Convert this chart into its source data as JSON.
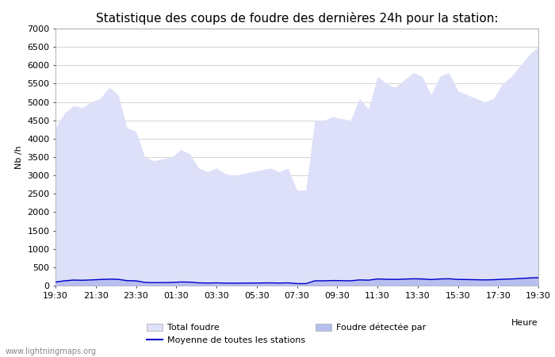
{
  "title": "Statistique des coups de foudre des dernières 24h pour la station:",
  "ylabel": "Nb /h",
  "xlabel": "Heure",
  "watermark": "www.lightningmaps.org",
  "ylim": [
    0,
    7000
  ],
  "yticks": [
    0,
    500,
    1000,
    1500,
    2000,
    2500,
    3000,
    3500,
    4000,
    4500,
    5000,
    5500,
    6000,
    6500,
    7000
  ],
  "xtick_labels": [
    "19:30",
    "21:30",
    "23:30",
    "01:30",
    "03:30",
    "05:30",
    "07:30",
    "09:30",
    "11:30",
    "13:30",
    "15:30",
    "17:30",
    "19:30"
  ],
  "fill_color_light": "#dde0f8",
  "fill_color_dark": "#b8bfee",
  "line_color": "#0000cc",
  "background_color": "#ffffff",
  "grid_color": "#cccccc",
  "title_fontsize": 11,
  "axis_fontsize": 8,
  "tick_fontsize": 8,
  "legend_fontsize": 8,
  "total_foudre_values": [
    4300,
    4700,
    4900,
    4850,
    5000,
    5100,
    5400,
    5200,
    4300,
    4200,
    3500,
    3400,
    3450,
    3500,
    3700,
    3600,
    3200,
    3100,
    3200,
    3050,
    3000,
    3050,
    3100,
    3150,
    3200,
    3100,
    3200,
    2600,
    2600,
    4500,
    4500,
    4600,
    4550,
    4500,
    5100,
    4800,
    5700,
    5500,
    5400,
    5600,
    5800,
    5700,
    5200,
    5700,
    5800,
    5300,
    5200,
    5100,
    5000,
    5100,
    5500,
    5700,
    6000,
    6300,
    6500
  ],
  "foudre_detectee_values": [
    120,
    160,
    180,
    170,
    185,
    195,
    210,
    200,
    160,
    155,
    110,
    100,
    105,
    110,
    125,
    120,
    95,
    90,
    95,
    88,
    85,
    88,
    90,
    92,
    95,
    90,
    95,
    70,
    68,
    155,
    155,
    165,
    160,
    155,
    185,
    175,
    215,
    205,
    200,
    210,
    220,
    215,
    195,
    215,
    220,
    200,
    195,
    190,
    185,
    190,
    205,
    215,
    230,
    245,
    255
  ],
  "moyenne_values": [
    95,
    130,
    150,
    145,
    155,
    165,
    175,
    170,
    135,
    130,
    88,
    80,
    82,
    85,
    98,
    95,
    75,
    70,
    75,
    68,
    65,
    68,
    70,
    72,
    75,
    70,
    75,
    55,
    53,
    130,
    130,
    138,
    135,
    130,
    155,
    148,
    180,
    172,
    168,
    176,
    185,
    180,
    164,
    180,
    185,
    168,
    164,
    160,
    155,
    160,
    172,
    180,
    193,
    206,
    215
  ]
}
